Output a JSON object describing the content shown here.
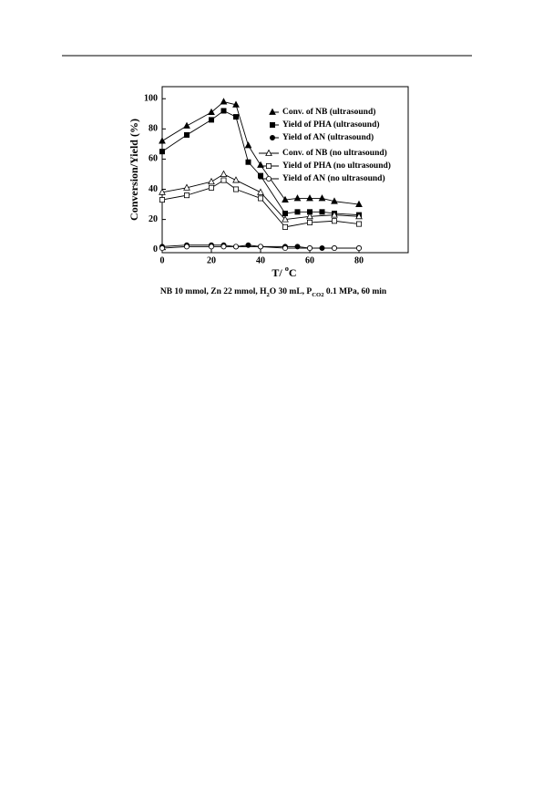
{
  "chart_data": {
    "type": "line",
    "y_label": "Conversion/Yield (%)",
    "x_label_parts": [
      "T/ ",
      "o",
      "C"
    ],
    "caption_parts": [
      "NB 10 mmol, Zn 22 mmol, H",
      "2",
      "O 30 mL, P",
      "CO2",
      " 0.1 MPa, 60 min"
    ],
    "xlim": [
      0,
      100
    ],
    "ylim": [
      -2,
      108
    ],
    "xticks": [
      0,
      20,
      40,
      60,
      80
    ],
    "yticks": [
      0,
      20,
      40,
      60,
      80,
      100
    ],
    "series": [
      {
        "name": "Conv. of NB  (ultrasound)",
        "color": "#000000",
        "marker": "triangle",
        "filled": true,
        "x": [
          0,
          10,
          20,
          25,
          30,
          35,
          40,
          50,
          55,
          60,
          65,
          70,
          80
        ],
        "values": [
          72,
          82,
          91,
          98,
          96,
          69,
          56,
          33,
          34,
          34,
          34,
          32,
          30
        ]
      },
      {
        "name": "Yield of PHA  (ultrasound)",
        "color": "#000000",
        "marker": "square",
        "filled": true,
        "x": [
          0,
          10,
          20,
          25,
          30,
          35,
          40,
          50,
          55,
          60,
          65,
          70,
          80
        ],
        "values": [
          65,
          76,
          86,
          92,
          88,
          58,
          49,
          24,
          25,
          25,
          25,
          24,
          23
        ]
      },
      {
        "name": "Yield of AN  (ultrasound)",
        "color": "#000000",
        "marker": "circle",
        "filled": true,
        "x": [
          0,
          10,
          20,
          25,
          30,
          35,
          40,
          50,
          55,
          60,
          65,
          70,
          80
        ],
        "values": [
          2,
          3,
          3,
          3,
          2,
          3,
          2,
          2,
          2,
          1,
          1,
          1,
          1
        ]
      },
      {
        "name": "Conv. of NB (no ultrasound)",
        "color": "#000000",
        "marker": "triangle",
        "filled": false,
        "x": [
          0,
          10,
          20,
          25,
          30,
          40,
          50,
          60,
          70,
          80
        ],
        "values": [
          38,
          41,
          45,
          50,
          46,
          38,
          20,
          22,
          23,
          22
        ]
      },
      {
        "name": "Yield of PHA (no ultrasound)",
        "color": "#000000",
        "marker": "square",
        "filled": false,
        "x": [
          0,
          10,
          20,
          25,
          30,
          40,
          50,
          60,
          70,
          80
        ],
        "values": [
          33,
          36,
          41,
          46,
          40,
          34,
          15,
          18,
          19,
          17
        ]
      },
      {
        "name": "Yield of AN (no ultrasound)",
        "color": "#000000",
        "marker": "circle",
        "filled": false,
        "x": [
          0,
          10,
          20,
          25,
          30,
          40,
          50,
          60,
          70,
          80
        ],
        "values": [
          1,
          2,
          2,
          2,
          2,
          2,
          1,
          1,
          1,
          1
        ]
      }
    ]
  }
}
